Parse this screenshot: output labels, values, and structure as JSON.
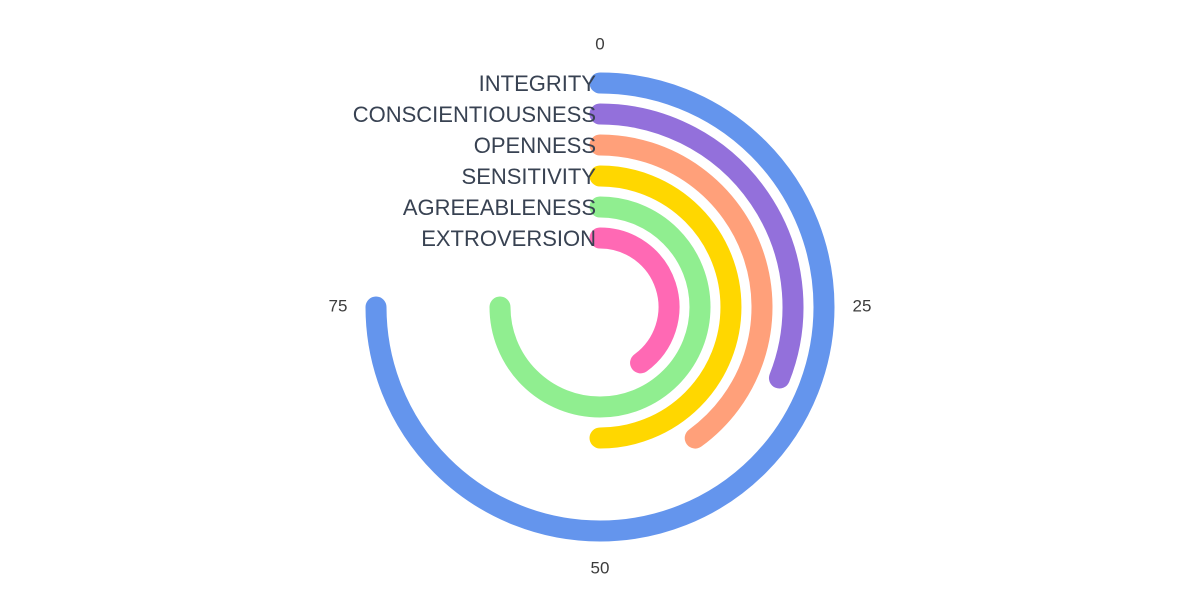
{
  "chart_data": {
    "type": "radial-bar",
    "angular_axis": {
      "max": 100,
      "ticks": [
        0,
        25,
        50,
        75
      ],
      "tick_labels": [
        "0",
        "25",
        "50",
        "75"
      ]
    },
    "categories": [
      "INTEGRITY",
      "CONSCIENTIOUSNESS",
      "OPENNESS",
      "SENSITIVITY",
      "AGREEABLENESS",
      "EXTROVERSION"
    ],
    "values": [
      75,
      31,
      40,
      50,
      75,
      40
    ],
    "colors": [
      "#6495ED",
      "#9370DB",
      "#FFA07A",
      "#FFD700",
      "#90EE90",
      "#FF69B4"
    ],
    "grid": false,
    "legend": "none"
  }
}
